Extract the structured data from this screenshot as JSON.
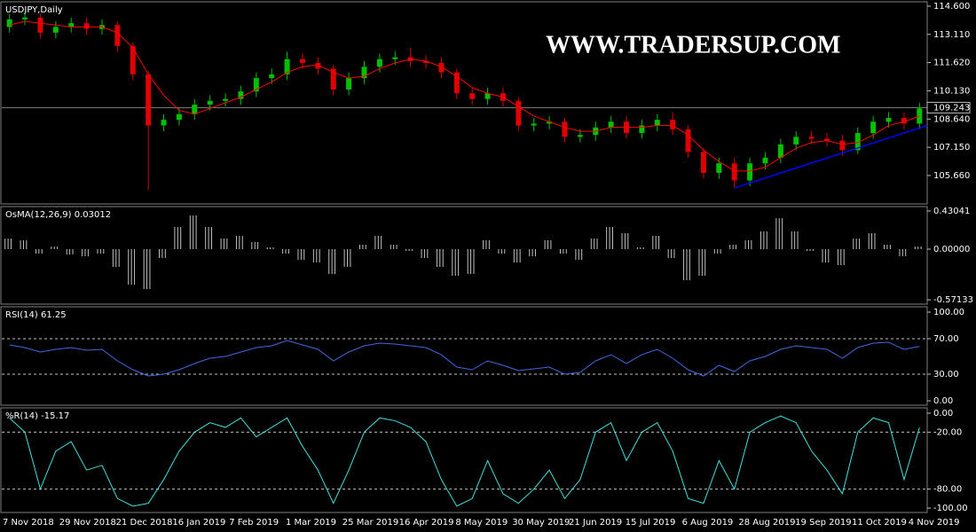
{
  "chart_data": [
    {
      "type": "candlestick",
      "title": "USDJPY,Daily",
      "watermark": "WWW.TRADERSUP.COM",
      "up_color": "#00c000",
      "down_color": "#e00000",
      "ma_color": "#ff0000",
      "trendline_color": "#0000ff",
      "ylim": [
        104.16,
        114.83
      ],
      "yticks": [
        {
          "value": 114.6,
          "label": "114.600"
        },
        {
          "value": 113.11,
          "label": "113.110"
        },
        {
          "value": 111.62,
          "label": "111.620"
        },
        {
          "value": 110.13,
          "label": "110.130"
        },
        {
          "value": 108.64,
          "label": "108.640"
        },
        {
          "value": 107.15,
          "label": "107.150"
        },
        {
          "value": 105.66,
          "label": "105.660"
        }
      ],
      "current_price": {
        "value": 109.243,
        "label": "109.243"
      },
      "trendline_values": [
        105.0,
        108.3
      ],
      "open": [
        113.5,
        113.9,
        114.0,
        113.2,
        113.5,
        113.7,
        113.4,
        113.6,
        112.5,
        111.0,
        108.3,
        108.6,
        108.9,
        109.4,
        109.6,
        109.7,
        110.1,
        110.8,
        111.0,
        111.8,
        111.6,
        111.3,
        110.2,
        110.8,
        111.4,
        111.8,
        111.9,
        111.7,
        111.6,
        111.1,
        110.0,
        109.7,
        110.0,
        109.6,
        108.3,
        108.4,
        108.5,
        107.7,
        107.8,
        108.2,
        108.5,
        107.9,
        108.3,
        108.6,
        108.1,
        106.9,
        105.8,
        106.3,
        105.4,
        106.3,
        106.6,
        107.3,
        107.7,
        107.6,
        107.5,
        107.0,
        107.9,
        108.5,
        108.7,
        108.4
      ],
      "high": [
        114.2,
        114.3,
        114.2,
        113.8,
        114.0,
        114.0,
        113.9,
        113.8,
        112.7,
        111.2,
        108.9,
        109.2,
        109.7,
        109.9,
        110.0,
        110.4,
        111.1,
        111.3,
        112.2,
        112.1,
        111.9,
        111.5,
        111.1,
        111.7,
        112.1,
        112.2,
        112.4,
        112.0,
        111.9,
        111.3,
        110.3,
        110.3,
        110.3,
        109.8,
        108.7,
        108.8,
        108.7,
        108.1,
        108.5,
        108.8,
        108.8,
        108.6,
        108.9,
        109.0,
        108.3,
        107.1,
        106.6,
        106.6,
        106.6,
        106.9,
        107.6,
        108.0,
        108.0,
        107.9,
        107.8,
        108.2,
        108.8,
        109.0,
        109.0,
        109.5
      ],
      "low": [
        113.2,
        113.6,
        112.9,
        112.9,
        113.2,
        113.1,
        113.1,
        112.2,
        110.7,
        104.9,
        108.0,
        108.3,
        108.6,
        109.1,
        109.3,
        109.4,
        109.8,
        110.5,
        110.7,
        111.3,
        111.0,
        109.9,
        109.9,
        110.5,
        111.1,
        111.5,
        111.4,
        111.3,
        110.8,
        109.7,
        109.4,
        109.4,
        109.3,
        108.0,
        108.0,
        108.1,
        107.4,
        107.4,
        107.5,
        107.9,
        107.6,
        107.6,
        108.0,
        107.8,
        106.6,
        105.5,
        105.5,
        105.0,
        105.1,
        106.0,
        106.3,
        107.0,
        107.3,
        107.2,
        106.7,
        106.8,
        107.6,
        108.2,
        108.1,
        108.1
      ],
      "close": [
        113.9,
        114.0,
        113.2,
        113.5,
        113.7,
        113.4,
        113.6,
        112.5,
        111.0,
        108.3,
        108.6,
        108.9,
        109.4,
        109.6,
        109.7,
        110.1,
        110.8,
        111.0,
        111.8,
        111.6,
        111.3,
        110.2,
        110.8,
        111.4,
        111.8,
        111.9,
        111.7,
        111.6,
        111.1,
        110.0,
        109.7,
        110.0,
        109.6,
        108.3,
        108.4,
        108.5,
        107.7,
        107.8,
        108.2,
        108.5,
        107.9,
        108.3,
        108.6,
        108.1,
        106.9,
        105.8,
        106.3,
        105.4,
        106.3,
        106.6,
        107.3,
        107.7,
        107.6,
        107.5,
        107.0,
        107.9,
        108.5,
        108.7,
        108.4,
        109.2
      ],
      "ma": [
        113.6,
        113.8,
        113.7,
        113.6,
        113.5,
        113.5,
        113.5,
        113.2,
        112.4,
        111.0,
        109.9,
        109.1,
        108.9,
        109.2,
        109.5,
        109.8,
        110.2,
        110.6,
        111.1,
        111.4,
        111.5,
        111.1,
        110.8,
        110.9,
        111.3,
        111.6,
        111.8,
        111.7,
        111.4,
        110.9,
        110.3,
        110.0,
        109.8,
        109.3,
        108.8,
        108.5,
        108.2,
        108.0,
        108.0,
        108.2,
        108.2,
        108.2,
        108.3,
        108.3,
        107.8,
        107.0,
        106.4,
        105.9,
        105.9,
        106.1,
        106.6,
        107.1,
        107.4,
        107.5,
        107.3,
        107.4,
        107.8,
        108.3,
        108.5,
        108.8
      ]
    },
    {
      "type": "histogram",
      "title": "OsMA(12,26,9) 0.03012",
      "color": "#c0c0c0",
      "ylim": [
        -0.62,
        0.48
      ],
      "yticks": [
        0.43041,
        {
          "value": 0,
          "label": "0.00000"
        },
        -0.57133
      ],
      "values": [
        0.12,
        0.1,
        -0.05,
        0.03,
        -0.06,
        -0.08,
        -0.05,
        -0.2,
        -0.4,
        -0.45,
        -0.1,
        0.25,
        0.38,
        0.25,
        0.12,
        0.15,
        0.08,
        0.02,
        -0.05,
        -0.12,
        -0.15,
        -0.28,
        -0.2,
        0.05,
        0.15,
        0.05,
        -0.02,
        -0.1,
        -0.2,
        -0.3,
        -0.28,
        0.1,
        -0.05,
        -0.15,
        -0.08,
        0.1,
        -0.05,
        -0.12,
        0.12,
        0.25,
        0.18,
        0.02,
        0.15,
        -0.1,
        -0.35,
        -0.3,
        -0.05,
        0.05,
        0.1,
        0.2,
        0.35,
        0.2,
        -0.02,
        -0.15,
        -0.18,
        0.12,
        0.18,
        0.05,
        -0.08,
        0.03
      ]
    },
    {
      "type": "line",
      "title": "RSI(14) 61.25",
      "color": "#4169e1",
      "ylim": [
        -5,
        106
      ],
      "yticks": [
        {
          "value": 100,
          "label": "100.00"
        },
        {
          "value": 70,
          "label": "70.00"
        },
        {
          "value": 30,
          "label": "30.00"
        },
        {
          "value": 0,
          "label": "0.00"
        }
      ],
      "levels": [
        70,
        30
      ],
      "values": [
        63,
        60,
        55,
        58,
        60,
        57,
        58,
        45,
        35,
        28,
        30,
        35,
        42,
        48,
        50,
        55,
        60,
        62,
        68,
        63,
        58,
        45,
        55,
        62,
        65,
        64,
        62,
        60,
        52,
        38,
        35,
        45,
        40,
        34,
        36,
        38,
        30,
        32,
        45,
        52,
        42,
        52,
        58,
        48,
        35,
        28,
        40,
        33,
        45,
        50,
        58,
        62,
        60,
        58,
        48,
        60,
        65,
        66,
        58,
        61.25
      ]
    },
    {
      "type": "line",
      "title": "%R(14) -15.17",
      "color": "#40e0e0",
      "ylim": [
        -104.7,
        5.6
      ],
      "yticks": [
        {
          "value": 0,
          "label": "0.00"
        },
        {
          "value": -20,
          "label": "-20.00"
        },
        {
          "value": -80,
          "label": "-80.00"
        },
        {
          "value": -100,
          "label": "-100.00"
        }
      ],
      "levels": [
        -20,
        -80
      ],
      "values": [
        -5,
        -20,
        -80,
        -40,
        -30,
        -60,
        -55,
        -90,
        -98,
        -95,
        -70,
        -40,
        -20,
        -10,
        -15,
        -5,
        -25,
        -15,
        -5,
        -35,
        -60,
        -95,
        -60,
        -20,
        -5,
        -8,
        -15,
        -30,
        -70,
        -98,
        -90,
        -50,
        -85,
        -95,
        -80,
        -60,
        -90,
        -70,
        -20,
        -10,
        -50,
        -20,
        -10,
        -40,
        -90,
        -95,
        -50,
        -80,
        -20,
        -10,
        -3,
        -10,
        -40,
        -60,
        -85,
        -20,
        -5,
        -10,
        -70,
        -15.17
      ],
      "date_labels": [
        "7 Nov 2018",
        "29 Nov 2018",
        "21 Dec 2018",
        "16 Jan 2019",
        "7 Feb 2019",
        "1 Mar 2019",
        "25 Mar 2019",
        "16 Apr 2019",
        "8 May 2019",
        "30 May 2019",
        "21 Jun 2019",
        "15 Jul 2019",
        "6 Aug 2019",
        "28 Aug 2019",
        "19 Sep 2019",
        "11 Oct 2019",
        "4 Nov 2019"
      ]
    }
  ]
}
